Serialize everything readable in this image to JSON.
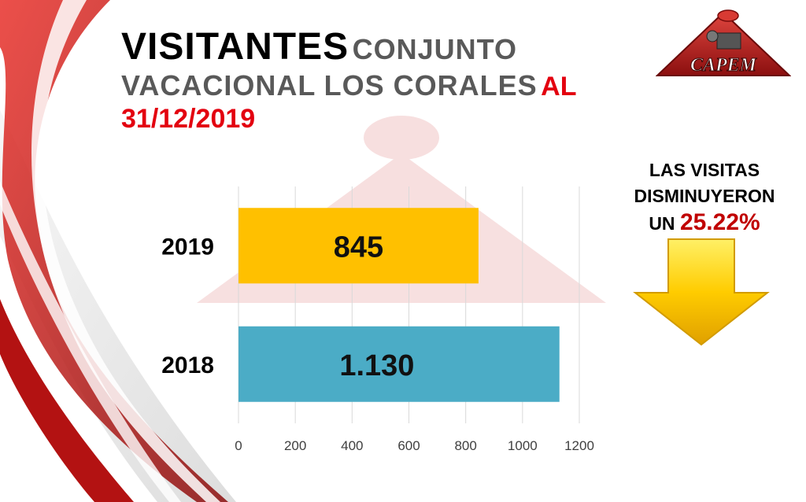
{
  "title": {
    "line1_bold": "VISITANTES",
    "line1_grey": "CONJUNTO",
    "line2_grey": "VACACIONAL LOS CORALES",
    "line2_red": "AL",
    "line3_red": "31/12/2019"
  },
  "logo": {
    "text": "CAPEM"
  },
  "note": {
    "line1": "LAS VISITAS",
    "line2": "DISMINUYERON",
    "line3_prefix": "UN",
    "percent": "25.22%",
    "arrow_icon": "down-arrow-icon"
  },
  "colors": {
    "bar_2019": "#ffc000",
    "bar_2018": "#4bacc6",
    "accent_red": "#e3000f",
    "arrow_yellow": "#ffcc00"
  },
  "chart_data": {
    "type": "bar",
    "orientation": "horizontal",
    "categories": [
      "2019",
      "2018"
    ],
    "values": [
      845,
      1130
    ],
    "data_labels": [
      "845",
      "1.130"
    ],
    "xlim": [
      0,
      1200
    ],
    "x_ticks": [
      "0",
      "200",
      "400",
      "600",
      "800",
      "1000",
      "1200"
    ],
    "grid": true,
    "legend": "none",
    "title": "",
    "xlabel": "",
    "ylabel": ""
  }
}
